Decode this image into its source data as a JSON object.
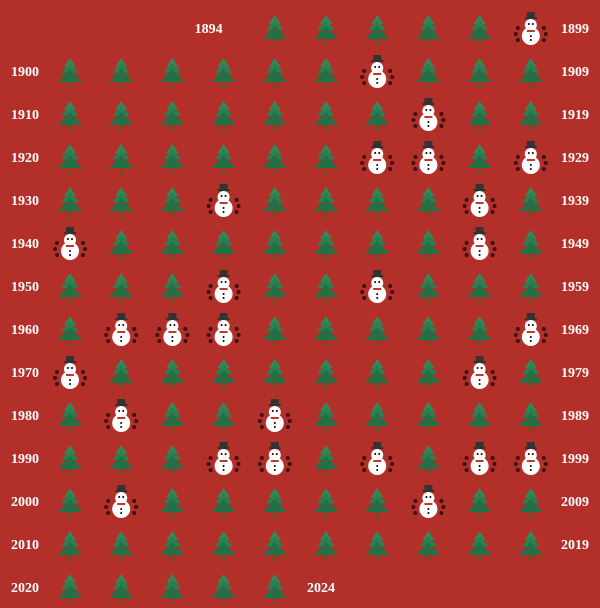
{
  "rows": [
    {
      "start": "1894",
      "end": "1899",
      "cells": [
        "tree",
        "tree",
        "tree",
        "tree",
        "tree",
        "snowman"
      ]
    },
    {
      "start": "1900",
      "end": "1909",
      "cells": [
        "tree",
        "tree",
        "tree",
        "tree",
        "tree",
        "tree",
        "snowman",
        "tree",
        "tree",
        "tree"
      ]
    },
    {
      "start": "1910",
      "end": "1919",
      "cells": [
        "tree",
        "tree",
        "tree",
        "tree",
        "tree",
        "tree",
        "tree",
        "snowman",
        "tree",
        "tree"
      ]
    },
    {
      "start": "1920",
      "end": "1929",
      "cells": [
        "tree",
        "tree",
        "tree",
        "tree",
        "tree",
        "tree",
        "snowman",
        "snowman",
        "tree",
        "snowman"
      ]
    },
    {
      "start": "1930",
      "end": "1939",
      "cells": [
        "tree",
        "tree",
        "tree",
        "snowman",
        "tree",
        "tree",
        "tree",
        "tree",
        "snowman",
        "tree"
      ]
    },
    {
      "start": "1940",
      "end": "1949",
      "cells": [
        "snowman",
        "tree",
        "tree",
        "tree",
        "tree",
        "tree",
        "tree",
        "tree",
        "snowman",
        "tree"
      ]
    },
    {
      "start": "1950",
      "end": "1959",
      "cells": [
        "tree",
        "tree",
        "tree",
        "snowman",
        "tree",
        "tree",
        "snowman",
        "tree",
        "tree",
        "tree"
      ]
    },
    {
      "start": "1960",
      "end": "1969",
      "cells": [
        "tree",
        "snowman",
        "snowman",
        "snowman",
        "tree",
        "tree",
        "tree",
        "tree",
        "tree",
        "snowman"
      ]
    },
    {
      "start": "1970",
      "end": "1979",
      "cells": [
        "snowman",
        "tree",
        "tree",
        "tree",
        "tree",
        "tree",
        "tree",
        "tree",
        "snowman",
        "tree"
      ]
    },
    {
      "start": "1980",
      "end": "1989",
      "cells": [
        "tree",
        "snowman",
        "tree",
        "tree",
        "snowman",
        "tree",
        "tree",
        "tree",
        "tree",
        "tree"
      ]
    },
    {
      "start": "1990",
      "end": "1999",
      "cells": [
        "tree",
        "tree",
        "tree",
        "snowman",
        "snowman",
        "tree",
        "snowman",
        "tree",
        "snowman",
        "snowman"
      ]
    },
    {
      "start": "2000",
      "end": "2009",
      "cells": [
        "tree",
        "snowman",
        "tree",
        "tree",
        "tree",
        "tree",
        "tree",
        "snowman",
        "tree",
        "tree"
      ]
    },
    {
      "start": "2010",
      "end": "2019",
      "cells": [
        "tree",
        "tree",
        "tree",
        "tree",
        "tree",
        "tree",
        "tree",
        "tree",
        "tree",
        "tree"
      ]
    },
    {
      "start": "2020",
      "end": "2024",
      "cells": [
        "tree",
        "tree",
        "tree",
        "tree",
        "tree"
      ]
    }
  ]
}
